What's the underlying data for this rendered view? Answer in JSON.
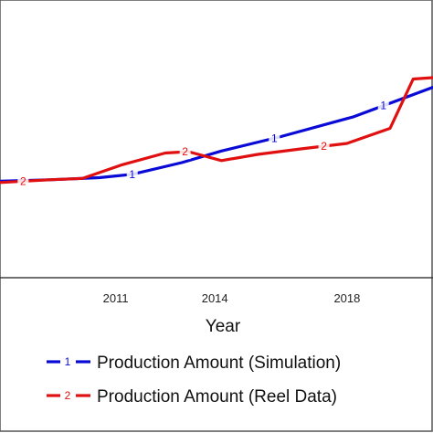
{
  "chart_data": {
    "type": "line",
    "xlabel": "Year",
    "ylabel": "",
    "x_ticks": [
      "2011",
      "2014",
      "2018"
    ],
    "xlim": [
      2007.5,
      2020.6
    ],
    "ylim": [
      0,
      100
    ],
    "grid": false,
    "legend_position": "bottom",
    "series": [
      {
        "name": "Production Amount (Simulation)",
        "marker_label": "1",
        "color": "#0a0ad6",
        "x": [
          2007.5,
          2009,
          2010.5,
          2011.5,
          2013,
          2014.2,
          2016,
          2018.2,
          2020.6
        ],
        "y": [
          24.5,
          25.5,
          27.0,
          29.5,
          38.0,
          46.5,
          57.0,
          71.5,
          93.0
        ],
        "marker_x": [
          2011.5,
          2015.8,
          2019.1
        ]
      },
      {
        "name": "Production Amount (Reel Data)",
        "marker_label": "2",
        "color": "#e01010",
        "x": [
          2007.5,
          2009,
          2010,
          2011.2,
          2012.5,
          2013.2,
          2014.2,
          2015.3,
          2016.6,
          2018,
          2019.3,
          2020,
          2020.6
        ],
        "y": [
          23.5,
          25.5,
          26.5,
          36.5,
          45.0,
          46.0,
          39.5,
          44.0,
          48.0,
          52.0,
          63.0,
          99.0,
          100.0
        ],
        "marker_x": [
          2008.2,
          2013.1,
          2017.3
        ]
      }
    ]
  }
}
